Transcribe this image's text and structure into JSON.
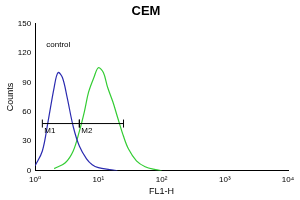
{
  "chart_data": {
    "type": "line",
    "title": "CEM",
    "x_label": "FL1-H",
    "y_label": "Counts",
    "log": "x",
    "grid": false,
    "xlim": [
      1,
      10000
    ],
    "xticks": [
      {
        "value": 1,
        "label": "10⁰"
      },
      {
        "value": 10,
        "label": "10¹"
      },
      {
        "value": 100,
        "label": "10²"
      },
      {
        "value": 1000,
        "label": "10³"
      },
      {
        "value": 10000,
        "label": "10⁴"
      }
    ],
    "ylim": [
      0,
      150
    ],
    "yticks": [
      0,
      30,
      60,
      90,
      120,
      150
    ],
    "series": [
      {
        "color": "#2b2bb0",
        "x": [
          1,
          1.3,
          1.6,
          2,
          2.3,
          2.7,
          3.2,
          4,
          5,
          6.5,
          8,
          10,
          15,
          20
        ],
        "values": [
          5,
          20,
          50,
          85,
          100,
          95,
          75,
          45,
          25,
          12,
          6,
          3,
          1,
          0
        ]
      },
      {
        "color": "#33cc33",
        "x": [
          2,
          3,
          4,
          5,
          6,
          7,
          8.5,
          10,
          12,
          14,
          17,
          20,
          25,
          30,
          40,
          55,
          80,
          100
        ],
        "values": [
          2,
          8,
          20,
          40,
          60,
          80,
          95,
          105,
          100,
          85,
          70,
          55,
          35,
          22,
          10,
          4,
          1,
          0
        ]
      }
    ],
    "annotations": [
      {
        "text": "control",
        "x": 1.5,
        "y": 128
      }
    ],
    "gates": [
      {
        "label": "M1",
        "start": 1.3,
        "end": 5,
        "y": 48
      },
      {
        "label": "M2",
        "start": 5,
        "end": 25,
        "y": 48
      }
    ]
  }
}
